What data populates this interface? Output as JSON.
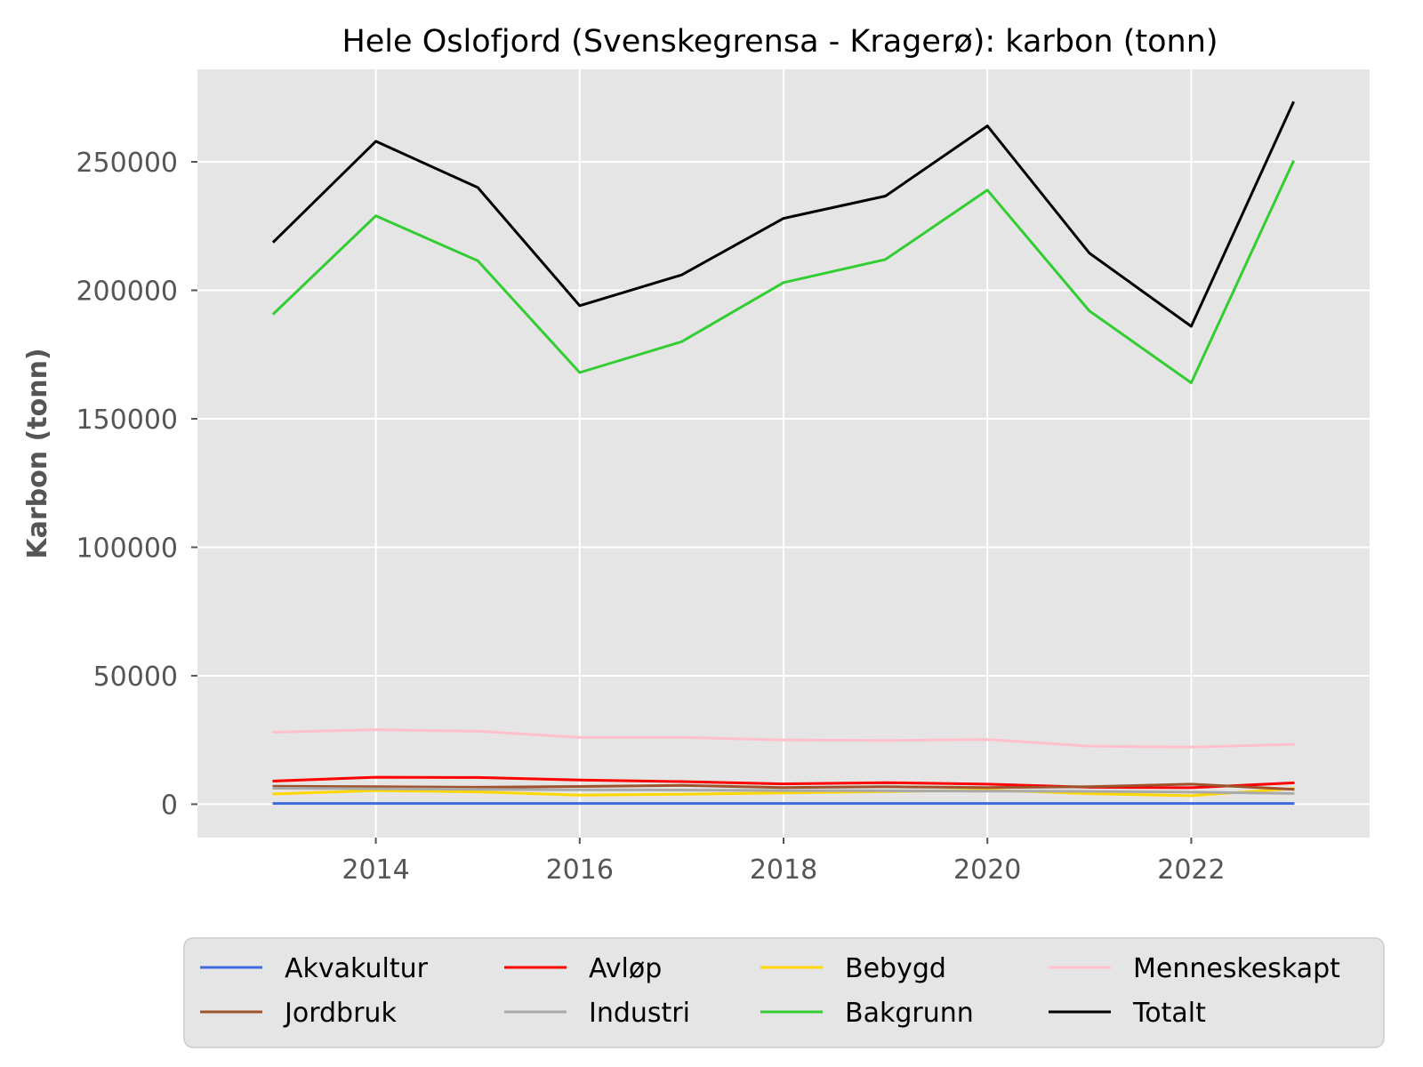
{
  "chart_data": {
    "type": "line",
    "title": "Hele Oslofjord (Svenskegrensa - Kragerø): karbon (tonn)",
    "xlabel": "",
    "ylabel": "Karbon (tonn)",
    "x": [
      2013,
      2014,
      2015,
      2016,
      2017,
      2018,
      2019,
      2020,
      2021,
      2022,
      2023
    ],
    "xlim": [
      2012.25,
      2023.75
    ],
    "ylim": [
      -13000,
      286000
    ],
    "xticks": [
      2014,
      2016,
      2018,
      2020,
      2022
    ],
    "yticks": [
      0,
      50000,
      100000,
      150000,
      200000,
      250000
    ],
    "xtick_labels": [
      "2014",
      "2016",
      "2018",
      "2020",
      "2022"
    ],
    "ytick_labels": [
      "0",
      "50000",
      "100000",
      "150000",
      "200000",
      "250000"
    ],
    "grid": true,
    "legend_position": "bottom",
    "series": [
      {
        "name": "Akvakultur",
        "color": "#4169E1",
        "values": [
          300,
          300,
          300,
          300,
          300,
          300,
          300,
          300,
          300,
          300,
          300
        ]
      },
      {
        "name": "Avløp",
        "color": "#FF0000",
        "values": [
          9000,
          10500,
          10400,
          9400,
          8800,
          7900,
          8400,
          7800,
          6600,
          6400,
          8300
        ]
      },
      {
        "name": "Bebygd",
        "color": "#FFD700",
        "values": [
          4000,
          5300,
          4800,
          3500,
          3900,
          4400,
          4900,
          5500,
          4100,
          3300,
          6100
        ]
      },
      {
        "name": "Menneskeskapt",
        "color": "#FFC0CB",
        "values": [
          28000,
          29000,
          28400,
          26000,
          26000,
          25000,
          24800,
          25200,
          22600,
          22200,
          23300
        ]
      },
      {
        "name": "Jordbruk",
        "color": "#A0522D",
        "values": [
          7000,
          6800,
          6600,
          6900,
          7300,
          6500,
          6800,
          6500,
          6800,
          7800,
          5800
        ]
      },
      {
        "name": "Industri",
        "color": "#A9A9A9",
        "values": [
          6200,
          6000,
          5800,
          5600,
          5500,
          5300,
          5200,
          5100,
          5000,
          4700,
          4200
        ]
      },
      {
        "name": "Bakgrunn",
        "color": "#32CD32",
        "values": [
          191000,
          229000,
          211500,
          168000,
          180000,
          203000,
          212000,
          239000,
          192000,
          164000,
          250000
        ]
      },
      {
        "name": "Totalt",
        "color": "#000000",
        "values": [
          219000,
          258000,
          240000,
          194000,
          206000,
          228000,
          236700,
          264000,
          214500,
          186000,
          273000
        ]
      }
    ]
  }
}
